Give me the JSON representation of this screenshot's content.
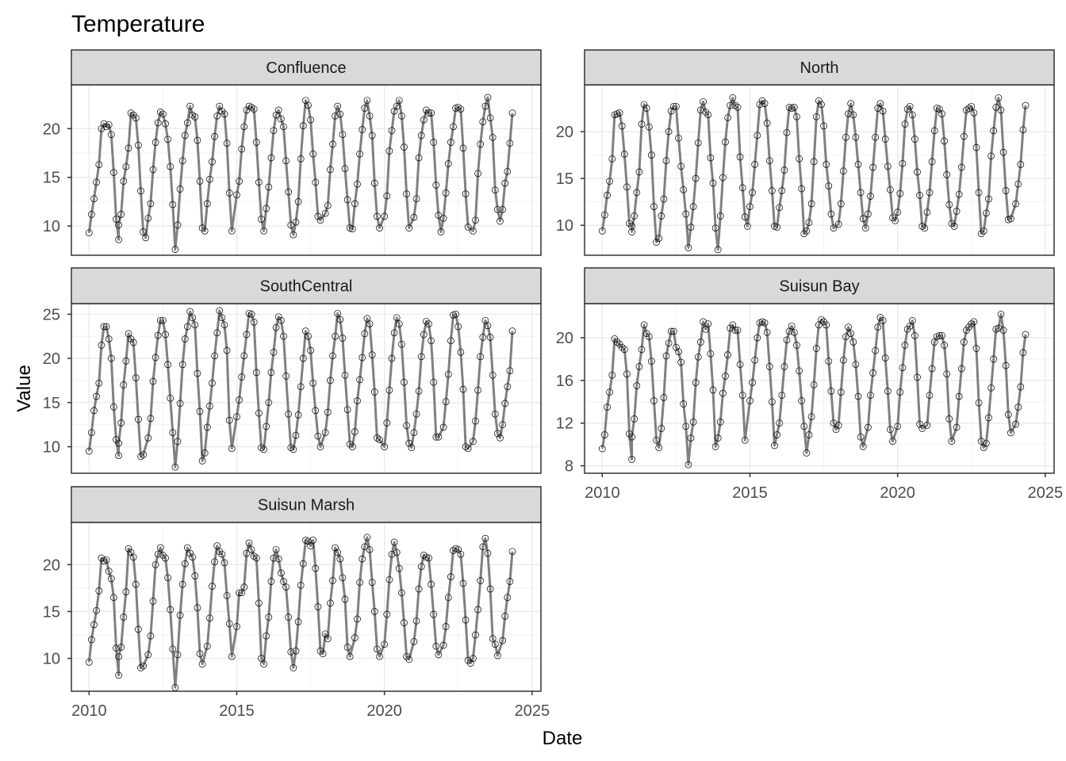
{
  "chart_data": {
    "type": "line",
    "title": "Temperature",
    "xlabel": "Date",
    "ylabel": "Value",
    "x_unit": "year",
    "x_ticks": [
      2010,
      2015,
      2020,
      2025
    ],
    "xlim": [
      2009.4,
      2025.3
    ],
    "grid": true,
    "legend": "none",
    "line_color": "#808080",
    "point_color": "#000000",
    "strip_fill": "#d9d9d9",
    "panels": [
      {
        "name": "Confluence",
        "ylim": [
          7,
          24.5
        ],
        "y_ticks": [
          10,
          15,
          20
        ],
        "yearly": [
          [
            9.3,
            11.2,
            12.8,
            14.5,
            16.3,
            20.0,
            20.5,
            20.2,
            20.4,
            19.4,
            15.5,
            10.7,
            8.6
          ],
          [
            10.1,
            11.2,
            14.6,
            16.1,
            18.0,
            21.6,
            21.4,
            21.1,
            18.3,
            13.6,
            9.4,
            8.8
          ],
          [
            10.8,
            12.3,
            15.8,
            18.6,
            20.6,
            21.7,
            21.5,
            20.5,
            18.9,
            16.1,
            12.2,
            7.6
          ],
          [
            10.1,
            13.8,
            16.7,
            19.3,
            20.6,
            22.3,
            21.4,
            21.2,
            18.8,
            14.6,
            9.8,
            9.5
          ],
          [
            12.3,
            14.8,
            16.6,
            19.2,
            21.3,
            22.3,
            21.8,
            21.5,
            18.5,
            13.4,
            9.5
          ],
          [
            13.2,
            14.6,
            17.9,
            20.2,
            21.9,
            22.3,
            22.2,
            22.0,
            18.6,
            14.5,
            10.7,
            9.5
          ],
          [
            11.8,
            14.0,
            17.0,
            19.8,
            21.4,
            21.9,
            21.0,
            20.2,
            16.7,
            13.5,
            10.1,
            9.1
          ],
          [
            10.4,
            12.5,
            16.9,
            20.3,
            22.9,
            22.4,
            20.9,
            17.4,
            14.5,
            11.0,
            10.6
          ],
          [
            11.3,
            12.1,
            15.8,
            18.4,
            21.3,
            22.3,
            21.5,
            19.4,
            15.9,
            12.7,
            9.8,
            9.7
          ],
          [
            12.3,
            14.3,
            17.4,
            19.9,
            22.1,
            22.9,
            21.3,
            19.3,
            14.4,
            11.0,
            9.8
          ],
          [
            11.0,
            13.1,
            17.7,
            19.8,
            21.8,
            22.3,
            22.9,
            21.3,
            18.1,
            13.3,
            9.8
          ],
          [
            10.9,
            12.8,
            17.0,
            19.3,
            20.9,
            21.9,
            21.6,
            21.6,
            18.6,
            14.2,
            11.1,
            9.4
          ],
          [
            10.8,
            13.4,
            16.4,
            18.6,
            20.2,
            22.1,
            22.2,
            22.0,
            18.0,
            13.3,
            9.9
          ],
          [
            9.5,
            10.6,
            15.4,
            18.4,
            20.7,
            22.3,
            23.2,
            21.1,
            19.1,
            13.7,
            11.7,
            10.5
          ],
          [
            11.7,
            14.4,
            15.6,
            18.5,
            21.6
          ]
        ]
      },
      {
        "name": "North",
        "ylim": [
          6.8,
          25
        ],
        "y_ticks": [
          10,
          15,
          20
        ],
        "yearly": [
          [
            9.4,
            11.1,
            13.2,
            14.7,
            17.1,
            21.8,
            21.9,
            22.0,
            20.6,
            17.6,
            14.1,
            10.2,
            9.9
          ],
          [
            9.3,
            11.0,
            13.5,
            15.7,
            20.8,
            22.9,
            22.5,
            20.5,
            17.5,
            12.0,
            8.2,
            8.6
          ],
          [
            11.0,
            12.8,
            16.9,
            20.0,
            22.2,
            22.7,
            22.7,
            19.3,
            16.3,
            13.8,
            11.2,
            7.6
          ],
          [
            9.8,
            12.0,
            15.0,
            18.8,
            22.3,
            23.2,
            22.1,
            21.8,
            17.2,
            14.5,
            9.7,
            7.4
          ],
          [
            11.0,
            15.1,
            18.9,
            21.5,
            22.8,
            23.6,
            22.8,
            22.6,
            17.3,
            14.0,
            10.9,
            9.9
          ],
          [
            12.0,
            13.5,
            16.5,
            19.6,
            22.9,
            23.3,
            23.0,
            20.9,
            16.9,
            13.7,
            9.9,
            9.8
          ],
          [
            11.9,
            13.7,
            15.9,
            19.9,
            22.6,
            22.5,
            22.6,
            21.6,
            17.1,
            13.9,
            9.1,
            9.4
          ],
          [
            10.3,
            12.3,
            16.8,
            21.6,
            23.3,
            22.9,
            20.6,
            16.5,
            14.2,
            11.2,
            9.7
          ],
          [
            10.1,
            12.3,
            15.8,
            19.4,
            21.9,
            23.0,
            21.8,
            19.4,
            16.5,
            13.5,
            10.7,
            9.7
          ],
          [
            11.2,
            13.1,
            16.2,
            19.4,
            22.5,
            23.0,
            22.2,
            19.2,
            16.3,
            13.8,
            10.8,
            10.5
          ],
          [
            11.4,
            13.4,
            16.6,
            20.8,
            22.4,
            22.7,
            21.8,
            19.2,
            15.7,
            13.2,
            9.9,
            9.7
          ],
          [
            11.4,
            13.5,
            16.8,
            20.1,
            22.5,
            22.4,
            21.9,
            19.0,
            15.4,
            12.2,
            10.2,
            9.9
          ],
          [
            11.5,
            13.3,
            16.2,
            19.5,
            22.3,
            22.5,
            22.7,
            22.0,
            18.3,
            13.5,
            9.1,
            9.4
          ],
          [
            11.3,
            12.8,
            17.4,
            20.1,
            22.6,
            23.6,
            22.3,
            17.8,
            13.7,
            10.6,
            10.7
          ],
          [
            12.3,
            14.4,
            16.5,
            20.2,
            22.8
          ]
        ]
      },
      {
        "name": "SouthCentral",
        "ylim": [
          7,
          26.2
        ],
        "y_ticks": [
          10,
          15,
          20,
          25
        ],
        "yearly": [
          [
            9.5,
            11.6,
            14.1,
            15.7,
            17.2,
            21.5,
            23.6,
            23.6,
            22.2,
            20.0,
            14.5,
            10.8,
            9.0
          ],
          [
            10.4,
            12.7,
            17.0,
            19.7,
            22.8,
            22.2,
            21.8,
            17.8,
            13.1,
            8.9,
            9.1
          ],
          [
            11.0,
            13.2,
            17.4,
            20.1,
            22.6,
            24.3,
            24.3,
            22.7,
            19.3,
            15.5,
            11.6,
            7.7
          ],
          [
            10.6,
            14.9,
            19.3,
            22.2,
            23.6,
            25.3,
            24.6,
            23.8,
            18.3,
            14.0,
            8.4,
            9.3
          ],
          [
            12.2,
            14.6,
            17.2,
            20.3,
            22.9,
            25.4,
            24.6,
            23.8,
            20.9,
            13.0,
            9.8
          ],
          [
            13.4,
            15.3,
            17.9,
            20.3,
            22.7,
            25.1,
            25.0,
            24.1,
            18.4,
            13.8,
            9.9,
            9.7
          ],
          [
            12.3,
            15.0,
            18.4,
            20.7,
            23.5,
            24.7,
            24.3,
            22.5,
            18.0,
            13.7,
            9.9,
            9.7
          ],
          [
            11.3,
            13.6,
            16.8,
            20.0,
            23.1,
            22.5,
            20.9,
            17.2,
            14.1,
            11.2,
            10.0
          ],
          [
            11.6,
            13.9,
            17.5,
            20.3,
            22.5,
            25.1,
            24.4,
            22.3,
            18.1,
            14.2,
            10.3,
            10.0
          ],
          [
            11.7,
            15.2,
            17.6,
            20.1,
            22.8,
            24.5,
            23.9,
            20.4,
            16.2,
            11.0,
            10.8
          ],
          [
            10.0,
            12.7,
            16.4,
            20.0,
            22.9,
            24.6,
            23.9,
            21.6,
            17.3,
            12.4,
            10.4,
            9.9
          ],
          [
            11.6,
            13.7,
            16.3,
            20.2,
            22.7,
            24.2,
            23.9,
            22.0,
            17.3,
            11.1,
            11.1
          ],
          [
            12.2,
            15.1,
            18.2,
            22.0,
            24.9,
            25.0,
            23.6,
            20.7,
            16.5,
            10.0,
            9.8
          ],
          [
            10.6,
            12.9,
            16.4,
            20.2,
            22.4,
            24.3,
            23.7,
            22.4,
            18.1,
            13.7,
            11.5,
            11.0
          ],
          [
            12.5,
            14.9,
            16.8,
            18.6,
            23.1
          ]
        ]
      },
      {
        "name": "Suisun Bay",
        "ylim": [
          7.3,
          23.2
        ],
        "y_ticks": [
          8,
          12,
          16,
          20
        ],
        "yearly": [
          [
            9.6,
            10.9,
            13.5,
            14.9,
            16.5,
            19.9,
            19.6,
            19.4,
            19.1,
            18.9,
            16.6,
            11.0,
            8.6
          ],
          [
            10.7,
            12.4,
            15.5,
            17.3,
            18.9,
            21.2,
            20.4,
            20.1,
            17.8,
            14.1,
            10.4,
            9.7
          ],
          [
            11.5,
            14.4,
            18.3,
            19.5,
            20.6,
            20.6,
            19.1,
            18.7,
            17.7,
            13.8,
            11.7,
            8.1
          ],
          [
            10.6,
            12.1,
            15.8,
            18.2,
            19.6,
            21.5,
            20.8,
            21.3,
            18.5,
            15.1,
            9.8,
            10.6
          ],
          [
            12.1,
            14.8,
            16.4,
            18.4,
            20.9,
            21.2,
            20.7,
            20.7,
            17.5,
            14.6,
            10.4
          ],
          [
            14.1,
            15.8,
            17.9,
            20.0,
            21.4,
            21.5,
            21.4,
            20.5,
            17.3,
            14.0,
            9.9,
            10.9
          ],
          [
            12.0,
            14.6,
            17.3,
            19.8,
            20.6,
            21.1,
            20.5,
            19.3,
            16.9,
            14.1,
            11.7,
            9.2
          ],
          [
            10.9,
            12.6,
            15.6,
            19.0,
            21.2,
            21.7,
            21.5,
            21.2,
            17.8,
            15.0,
            12.0,
            11.4
          ],
          [
            11.8,
            14.9,
            17.9,
            20.1,
            21.0,
            20.4,
            19.6,
            17.5,
            14.5,
            10.7,
            9.8
          ],
          [
            11.6,
            14.6,
            16.7,
            18.8,
            21.0,
            21.9,
            21.6,
            18.1,
            15.0,
            11.4,
            10.3
          ],
          [
            11.7,
            14.9,
            17.2,
            19.3,
            20.8,
            21.1,
            21.6,
            20.2,
            16.3,
            11.9,
            11.5
          ],
          [
            11.8,
            14.6,
            17.1,
            19.6,
            20.1,
            20.2,
            20.2,
            19.3,
            16.6,
            12.4,
            10.3
          ],
          [
            11.6,
            14.5,
            17.1,
            19.6,
            20.7,
            21.0,
            21.3,
            21.5,
            19.0,
            13.9,
            10.3,
            9.7
          ],
          [
            10.1,
            12.5,
            15.3,
            18.0,
            20.8,
            20.9,
            22.2,
            20.7,
            17.4,
            12.8,
            11.1
          ],
          [
            11.9,
            13.5,
            15.4,
            18.6,
            20.3
          ]
        ]
      },
      {
        "name": "Suisun Marsh",
        "ylim": [
          6.5,
          24.5
        ],
        "y_ticks": [
          10,
          15,
          20
        ],
        "yearly": [
          [
            9.6,
            12.0,
            13.6,
            15.1,
            17.2,
            20.7,
            20.4,
            20.5,
            19.3,
            18.5,
            16.5,
            11.1,
            8.2
          ],
          [
            10.2,
            11.2,
            14.4,
            17.1,
            21.7,
            21.3,
            20.8,
            17.9,
            13.1,
            9.0,
            9.2
          ],
          [
            10.4,
            12.4,
            16.1,
            20.0,
            21.1,
            21.8,
            21.0,
            20.7,
            18.6,
            15.2,
            11.0,
            6.9
          ],
          [
            10.4,
            14.6,
            17.9,
            20.1,
            21.8,
            21.2,
            20.8,
            18.8,
            15.4,
            10.5,
            9.4
          ],
          [
            11.3,
            14.3,
            17.7,
            20.3,
            22.0,
            21.4,
            21.1,
            20.2,
            16.7,
            13.7,
            10.2
          ],
          [
            13.4,
            17.0,
            17.0,
            17.6,
            21.2,
            22.3,
            21.6,
            20.9,
            20.7,
            15.9,
            10.0,
            9.4
          ],
          [
            12.4,
            14.4,
            18.2,
            20.7,
            21.6,
            20.6,
            19.1,
            18.2,
            17.6,
            14.4,
            10.7,
            9.0
          ],
          [
            10.8,
            13.9,
            17.8,
            20.1,
            22.6,
            22.5,
            22.0,
            22.6,
            19.6,
            15.5,
            10.8,
            10.5
          ],
          [
            12.6,
            12.1,
            15.9,
            18.3,
            21.8,
            21.3,
            20.6,
            18.6,
            16.3,
            11.2,
            10.2
          ],
          [
            12.2,
            14.2,
            18.1,
            20.6,
            21.9,
            22.9,
            21.6,
            18.1,
            15.0,
            11.0,
            10.2
          ],
          [
            11.5,
            14.7,
            18.4,
            21.1,
            22.4,
            21.3,
            19.6,
            17.0,
            13.8,
            10.2,
            9.9
          ],
          [
            11.8,
            14.0,
            17.4,
            19.8,
            21.0,
            20.8,
            20.7,
            17.9,
            14.7,
            11.3,
            10.4
          ],
          [
            11.4,
            13.4,
            16.5,
            18.7,
            21.5,
            21.7,
            21.6,
            21.1,
            18.0,
            14.1,
            9.8,
            9.5
          ],
          [
            10.0,
            12.5,
            15.2,
            18.3,
            21.9,
            22.8,
            21.2,
            17.4,
            12.1,
            11.5,
            10.3
          ],
          [
            11.9,
            14.5,
            16.5,
            18.2,
            21.4
          ]
        ]
      }
    ]
  }
}
